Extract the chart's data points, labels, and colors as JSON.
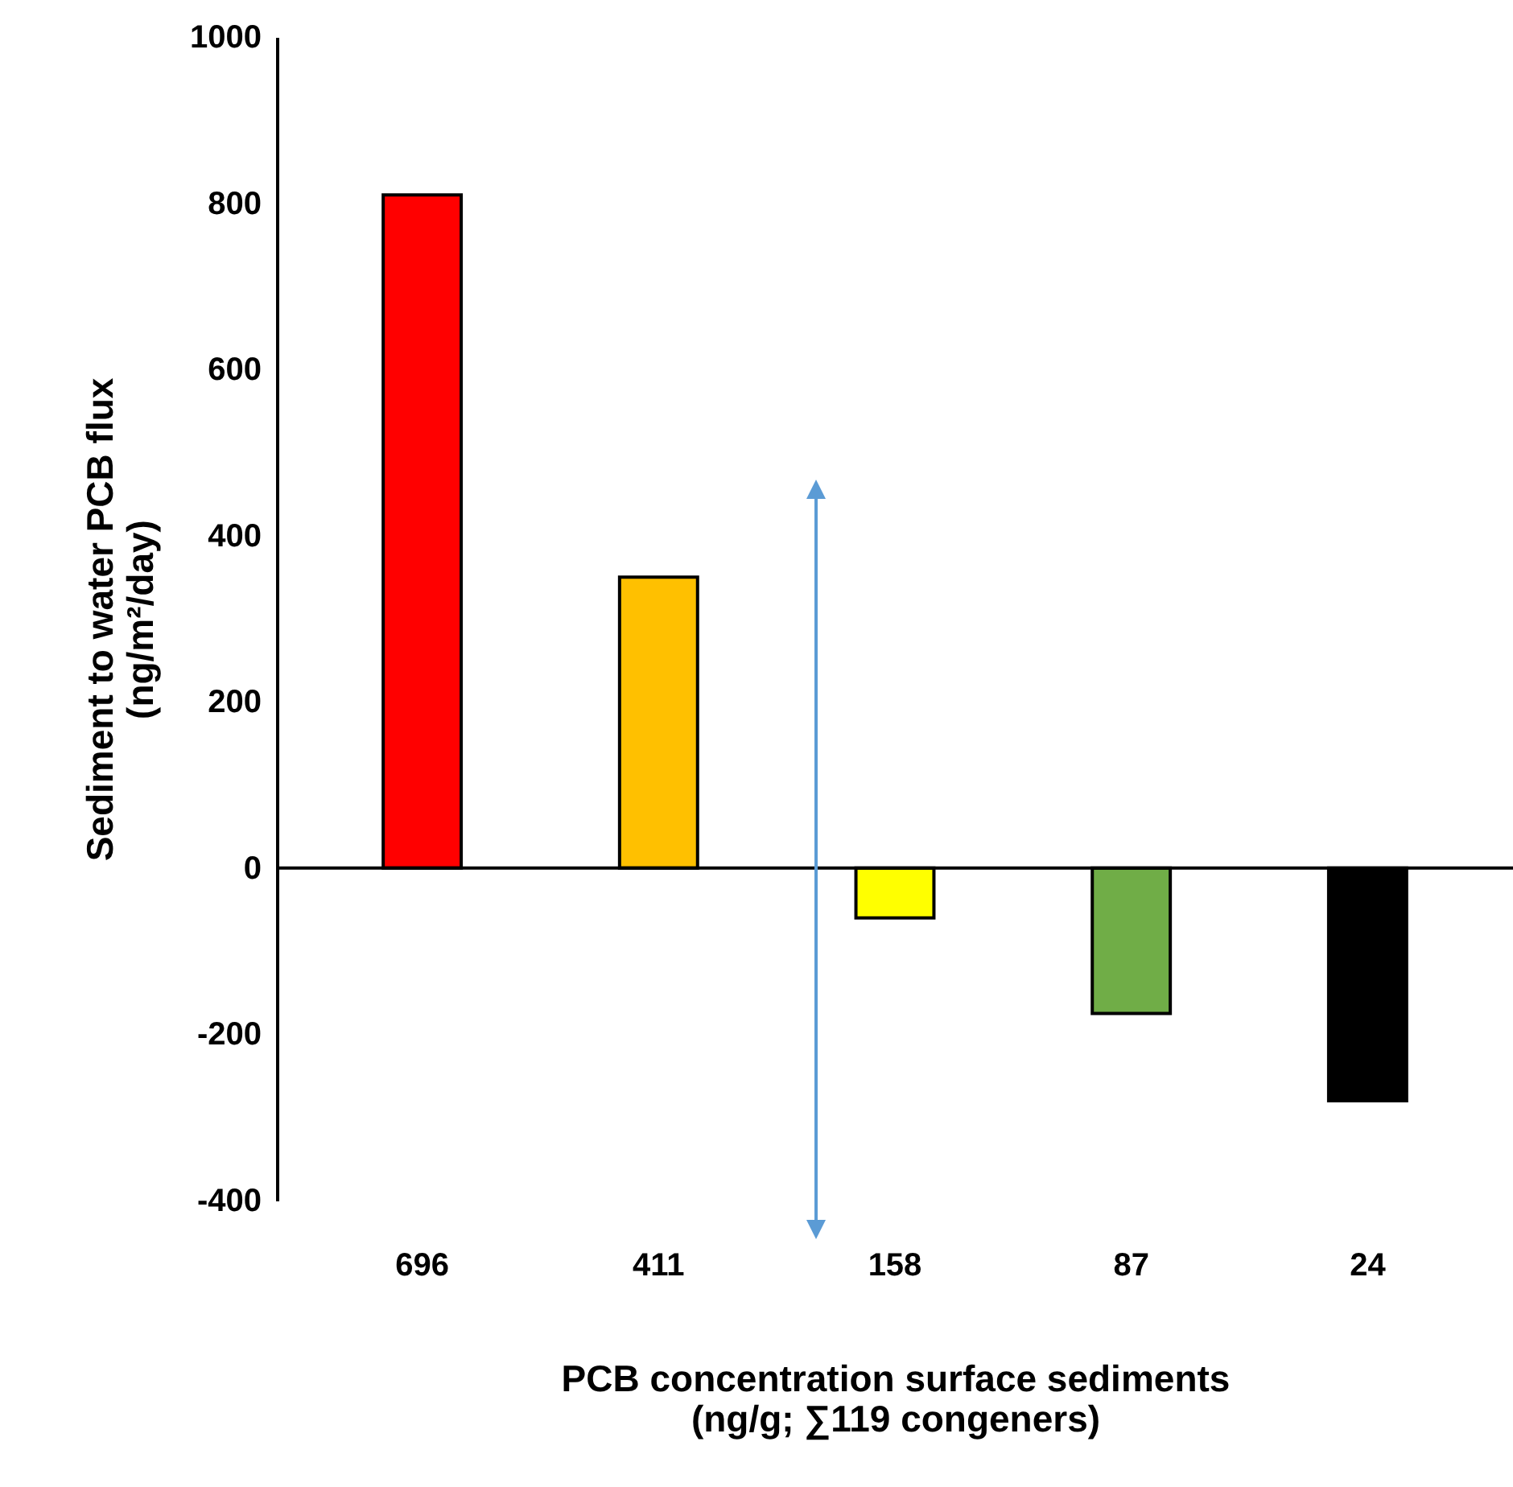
{
  "chart_data": {
    "type": "bar",
    "xlabel": "PCB concentration surface sediments\n(ng/g; ∑119 congeners)",
    "ylabel": "Sediment to water PCB flux\n(ng/m²/day)",
    "categories": [
      "696",
      "411",
      "158",
      "87",
      "24"
    ],
    "values": [
      810,
      350,
      -60,
      -175,
      -280
    ],
    "colors": [
      "#ff0000",
      "#ffc000",
      "#ffff00",
      "#70ad47",
      "#000000"
    ],
    "ylim": [
      -400,
      1000
    ],
    "yticks": [
      -400,
      -200,
      0,
      200,
      400,
      600,
      800,
      1000
    ],
    "ref_lines": [
      {
        "axis": "y",
        "value": 0,
        "color": "#000000"
      }
    ],
    "grid": false
  }
}
